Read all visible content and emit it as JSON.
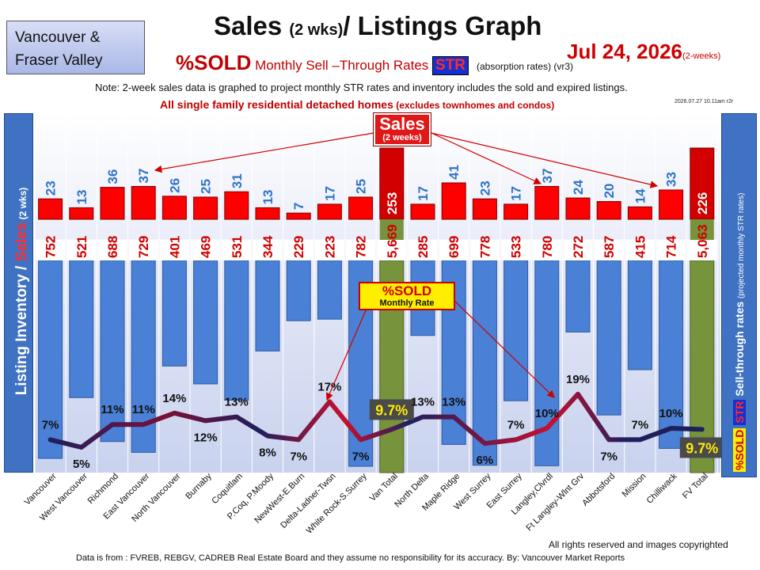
{
  "header": {
    "region_line1": "Vancouver &",
    "region_line2": "Fraser Valley",
    "title_main": "Sales ",
    "title_small": "(2 wks)",
    "title_end": "/ Listings Graph",
    "subtitle_bold": "%SOLD",
    "subtitle_rest": " Monthly Sell –Through Rates ",
    "str_badge": "STR",
    "absorption_note": "(absorption rates) (vr3)",
    "date": "Jul 24, 2026",
    "date_suffix": "(2-weeks)",
    "note": "Note: 2-week sales data is graphed to project monthly STR rates and inventory includes the sold and expired listings.",
    "scope_main": "All single family residential detached homes",
    "scope_sub": " (excludes townhomes and condos)",
    "stamp": "2026.07.27 10.11am r2r"
  },
  "left_axis": {
    "part1": "Listing Inventory / ",
    "part2": "Sales",
    "part3": " (2 wks)"
  },
  "right_axis": {
    "part1": "Sell-through rates ",
    "part2": "(projected monthly STR rates)",
    "str": "STR",
    "pct": "%SOLD"
  },
  "callouts": {
    "sales_big": "Sales",
    "sales_small": "(2 weeks)",
    "sold_big": "%SOLD",
    "sold_small": "Monthly Rate"
  },
  "footer": {
    "source": "Data is from : FVREB, REBGV, CADREB Real Estate Board and they assume no responsibility for its accuracy. By: Vancouver Market Reports",
    "copyright": "All rights reserved and  images copyrighted"
  },
  "colors": {
    "sales_bar": "#ff0000",
    "inventory_bar": "#4a80d6",
    "total_bar": "#77933c",
    "str_line": "#1f1f5c",
    "str_peak": "#c8102e"
  },
  "chart_data": {
    "type": "bar",
    "categories": [
      "Vancouver",
      "West Vancouver",
      "Richmond",
      "East Vancouver",
      "North Vancouver",
      "Burnaby",
      "Coquitlam",
      "P.Coq, P.Moody",
      "NewWest-E.Burn",
      "Delta-Ladner-Twsn",
      "White Rock-S.Surrey",
      "Van Total",
      "North Delta",
      "Maple Ridge",
      "West Surrey",
      "East Surrey",
      "Langley,Clvrdl",
      "Ft Langley-Wlnt Grv",
      "Abbotsford",
      "Mission",
      "Chilliwack",
      "FV Total"
    ],
    "series": [
      {
        "key": "sales",
        "values": [
          23,
          13,
          36,
          37,
          26,
          25,
          31,
          13,
          7,
          17,
          25,
          253,
          17,
          41,
          23,
          17,
          37,
          24,
          20,
          14,
          33,
          226
        ]
      },
      {
        "key": "inventory",
        "values": [
          752,
          521,
          688,
          729,
          401,
          469,
          531,
          344,
          229,
          223,
          782,
          5669,
          285,
          699,
          778,
          533,
          780,
          272,
          587,
          415,
          714,
          5063
        ]
      },
      {
        "key": "str",
        "values": [
          7,
          5,
          11,
          11,
          14,
          12,
          13,
          8,
          7,
          17,
          7,
          9.7,
          13,
          13,
          6,
          7,
          10,
          19,
          7,
          7,
          10,
          9.7
        ]
      }
    ],
    "str_labels": [
      "7%",
      "5%",
      "11%",
      "11%",
      "14%",
      "12%",
      "13%",
      "8%",
      "7%",
      "17%",
      "7%",
      "9.7%",
      "13%",
      "13%",
      "6%",
      "7%",
      "10%",
      "19%",
      "7%",
      "7%",
      "10%",
      "9.7%"
    ],
    "sales_labels": [
      "23",
      "13",
      "36",
      "37",
      "26",
      "25",
      "31",
      "13",
      "7",
      "17",
      "25",
      "253",
      "17",
      "41",
      "23",
      "17",
      "37",
      "24",
      "20",
      "14",
      "33",
      "226"
    ],
    "inventory_labels": [
      "752",
      "521",
      "688",
      "729",
      "401",
      "469",
      "531",
      "344",
      "229",
      "223",
      "782",
      "5,669",
      "285",
      "699",
      "778",
      "533",
      "780",
      "272",
      "587",
      "415",
      "714",
      "5,063"
    ],
    "total_indices": [
      11,
      21
    ],
    "grid": true
  }
}
